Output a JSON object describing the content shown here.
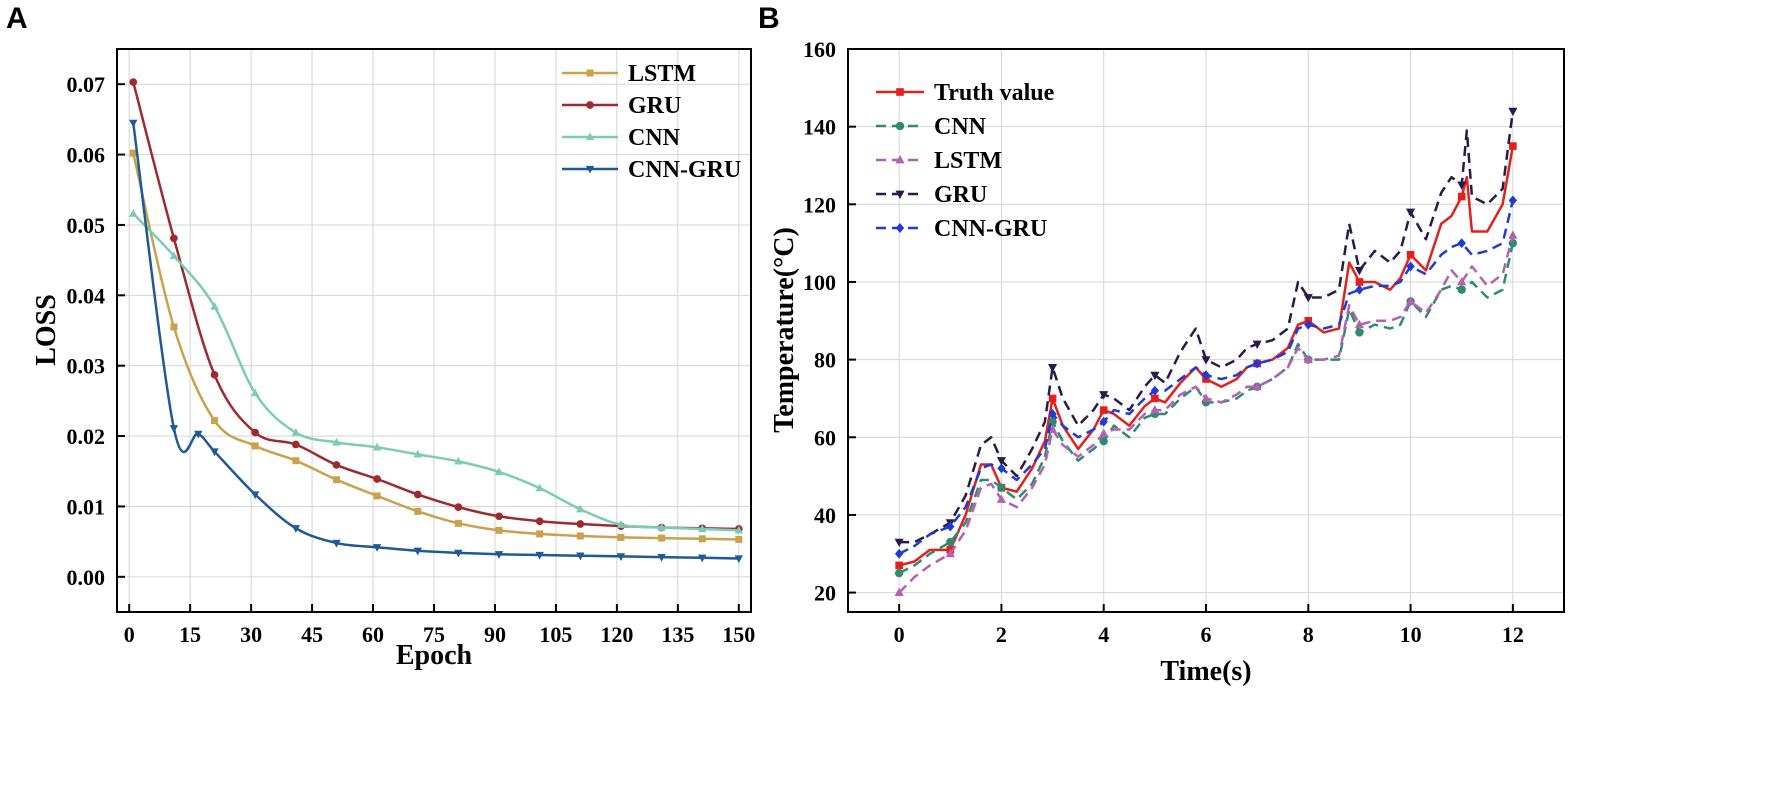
{
  "chart_data": [
    {
      "panel": "A",
      "type": "line",
      "title": "",
      "xlabel": "Epoch",
      "ylabel": "LOSS",
      "xlim": [
        -3,
        153
      ],
      "ylim": [
        -0.005,
        0.075
      ],
      "xticks": [
        0,
        15,
        30,
        45,
        60,
        75,
        90,
        105,
        120,
        135,
        150
      ],
      "yticks": [
        0.0,
        0.01,
        0.02,
        0.03,
        0.04,
        0.05,
        0.06,
        0.07
      ],
      "xtick_labels": [
        "0",
        "15",
        "30",
        "45",
        "60",
        "75",
        "90",
        "105",
        "120",
        "135",
        "150"
      ],
      "ytick_labels": [
        "0.00",
        "0.01",
        "0.02",
        "0.03",
        "0.04",
        "0.05",
        "0.06",
        "0.07"
      ],
      "grid": true,
      "legend_position": "top-right",
      "series": [
        {
          "name": "LSTM",
          "color": "#c9a24b",
          "marker": "square",
          "dash": "solid",
          "x": [
            1,
            11,
            21,
            31,
            41,
            51,
            61,
            71,
            81,
            91,
            101,
            111,
            121,
            131,
            141,
            150
          ],
          "y": [
            0.0602,
            0.0355,
            0.0222,
            0.0186,
            0.0165,
            0.0138,
            0.0115,
            0.0093,
            0.0076,
            0.0066,
            0.0061,
            0.0058,
            0.0056,
            0.0055,
            0.0054,
            0.0053
          ]
        },
        {
          "name": "GRU",
          "color": "#9e2a2f",
          "marker": "circle",
          "dash": "solid",
          "x": [
            1,
            11,
            21,
            31,
            41,
            51,
            61,
            71,
            81,
            91,
            101,
            111,
            121,
            131,
            141,
            150
          ],
          "y": [
            0.0703,
            0.0481,
            0.0287,
            0.0205,
            0.0188,
            0.0159,
            0.0139,
            0.0117,
            0.0099,
            0.0086,
            0.0079,
            0.0075,
            0.0072,
            0.007,
            0.0069,
            0.0068
          ]
        },
        {
          "name": "CNN",
          "color": "#7ccbb5",
          "marker": "triangle-up",
          "dash": "solid",
          "x": [
            1,
            11,
            21,
            31,
            41,
            51,
            61,
            71,
            81,
            91,
            101,
            111,
            121,
            131,
            141,
            150
          ],
          "y": [
            0.0516,
            0.0456,
            0.0384,
            0.0261,
            0.0205,
            0.0191,
            0.0184,
            0.0174,
            0.0164,
            0.0149,
            0.0126,
            0.0096,
            0.0074,
            0.007,
            0.0068,
            0.0066
          ]
        },
        {
          "name": "CNN-GRU",
          "color": "#1f5a96",
          "marker": "triangle-down",
          "dash": "solid",
          "x": [
            1,
            11,
            17,
            21,
            31,
            41,
            51,
            61,
            71,
            81,
            91,
            101,
            111,
            121,
            131,
            141,
            150
          ],
          "y": [
            0.0645,
            0.0211,
            0.0203,
            0.0178,
            0.0117,
            0.0069,
            0.0048,
            0.0042,
            0.0037,
            0.0034,
            0.0032,
            0.0031,
            0.003,
            0.0029,
            0.0028,
            0.0027,
            0.0026
          ]
        }
      ]
    },
    {
      "panel": "B",
      "type": "line",
      "title": "",
      "xlabel": "Time(s)",
      "ylabel": "Temperature(°C)",
      "xlim": [
        -1,
        13
      ],
      "ylim": [
        15,
        160
      ],
      "xticks": [
        0,
        2,
        4,
        6,
        8,
        10,
        12
      ],
      "yticks": [
        20,
        40,
        60,
        80,
        100,
        120,
        140,
        160
      ],
      "xtick_labels": [
        "0",
        "2",
        "4",
        "6",
        "8",
        "10",
        "12"
      ],
      "ytick_labels": [
        "20",
        "40",
        "60",
        "80",
        "100",
        "120",
        "140",
        "160"
      ],
      "grid": true,
      "legend_position": "top-left",
      "series": [
        {
          "name": "Truth value",
          "color": "#e3201c",
          "marker": "square",
          "dash": "solid",
          "x": [
            0,
            0.3,
            0.6,
            1.0,
            1.3,
            1.6,
            1.8,
            2.0,
            2.3,
            2.6,
            2.85,
            3.0,
            3.2,
            3.5,
            3.8,
            4.0,
            4.2,
            4.5,
            4.8,
            5.0,
            5.2,
            5.5,
            5.8,
            6.0,
            6.3,
            6.6,
            6.8,
            7.0,
            7.3,
            7.6,
            7.8,
            8.0,
            8.3,
            8.6,
            8.8,
            9.0,
            9.3,
            9.6,
            9.8,
            10.0,
            10.3,
            10.6,
            10.8,
            11.0,
            11.1,
            11.2,
            11.5,
            11.8,
            12.0
          ],
          "y": [
            27,
            28,
            31,
            31,
            40,
            53,
            53,
            47,
            46,
            52,
            59,
            70,
            63,
            57,
            62,
            67,
            66,
            63,
            68,
            70,
            69,
            74,
            78,
            75,
            73,
            75,
            78,
            79,
            80,
            83,
            89,
            90,
            87,
            88,
            105,
            100,
            100,
            98,
            101,
            107,
            103,
            115,
            117,
            122,
            127,
            113,
            113,
            120,
            135
          ]
        },
        {
          "name": "CNN",
          "color": "#2e8b6e",
          "marker": "circle",
          "dash": "dashed",
          "x": [
            0,
            0.3,
            0.6,
            1.0,
            1.3,
            1.6,
            1.8,
            2.0,
            2.3,
            2.6,
            2.85,
            3.0,
            3.2,
            3.5,
            3.8,
            4.0,
            4.2,
            4.5,
            4.8,
            5.0,
            5.2,
            5.5,
            5.8,
            6.0,
            6.3,
            6.6,
            6.8,
            7.0,
            7.3,
            7.6,
            7.8,
            8.0,
            8.3,
            8.6,
            8.8,
            9.0,
            9.3,
            9.6,
            9.8,
            10.0,
            10.3,
            10.6,
            10.8,
            11.0,
            11.2,
            11.5,
            11.8,
            12.0
          ],
          "y": [
            25,
            27,
            30,
            33,
            38,
            49,
            49,
            47,
            44,
            48,
            55,
            64,
            59,
            54,
            57,
            59,
            63,
            60,
            65,
            66,
            66,
            70,
            73,
            69,
            69,
            70,
            72,
            73,
            75,
            78,
            84,
            80,
            80,
            80,
            93,
            87,
            89,
            88,
            89,
            95,
            91,
            98,
            99,
            98,
            100,
            96,
            98,
            110
          ]
        },
        {
          "name": "LSTM",
          "color": "#b45fb4",
          "marker": "triangle-up",
          "dash": "dashed",
          "x": [
            0,
            0.3,
            0.6,
            1.0,
            1.3,
            1.6,
            1.8,
            2.0,
            2.3,
            2.6,
            2.85,
            3.0,
            3.2,
            3.5,
            3.8,
            4.0,
            4.2,
            4.5,
            4.8,
            5.0,
            5.2,
            5.5,
            5.8,
            6.0,
            6.3,
            6.6,
            6.8,
            7.0,
            7.3,
            7.6,
            7.8,
            8.0,
            8.3,
            8.6,
            8.8,
            9.0,
            9.3,
            9.6,
            9.8,
            10.0,
            10.3,
            10.6,
            10.8,
            11.0,
            11.2,
            11.5,
            11.8,
            12.0
          ],
          "y": [
            20,
            24,
            27,
            30,
            36,
            47,
            48,
            44,
            42,
            47,
            53,
            62,
            58,
            55,
            58,
            61,
            62,
            62,
            66,
            67,
            67,
            71,
            73,
            70,
            69,
            71,
            73,
            73,
            75,
            78,
            83,
            80,
            80,
            81,
            94,
            89,
            90,
            90,
            91,
            95,
            92,
            98,
            103,
            100,
            104,
            99,
            102,
            112
          ]
        },
        {
          "name": "GRU",
          "color": "#2a1a4a",
          "marker": "triangle-down",
          "dash": "dashed",
          "x": [
            0,
            0.3,
            0.6,
            1.0,
            1.3,
            1.6,
            1.8,
            2.0,
            2.3,
            2.6,
            2.85,
            3.0,
            3.2,
            3.5,
            3.8,
            4.0,
            4.2,
            4.5,
            4.8,
            5.0,
            5.2,
            5.5,
            5.8,
            6.0,
            6.3,
            6.6,
            6.8,
            7.0,
            7.3,
            7.6,
            7.8,
            8.0,
            8.3,
            8.6,
            8.8,
            9.0,
            9.3,
            9.6,
            9.8,
            10.0,
            10.3,
            10.6,
            10.8,
            11.0,
            11.1,
            11.2,
            11.5,
            11.8,
            12.0
          ],
          "y": [
            33,
            33,
            35,
            38,
            45,
            58,
            60,
            54,
            50,
            57,
            64,
            78,
            70,
            63,
            67,
            71,
            70,
            67,
            73,
            76,
            74,
            82,
            88,
            80,
            78,
            80,
            83,
            84,
            85,
            88,
            100,
            96,
            96,
            98,
            115,
            103,
            108,
            105,
            108,
            118,
            111,
            123,
            127,
            125,
            139,
            122,
            120,
            124,
            144
          ]
        },
        {
          "name": "CNN-GRU",
          "color": "#1f3bd6",
          "marker": "diamond",
          "dash": "dashed",
          "x": [
            0,
            0.3,
            0.6,
            1.0,
            1.3,
            1.6,
            1.8,
            2.0,
            2.3,
            2.6,
            2.85,
            3.0,
            3.2,
            3.5,
            3.8,
            4.0,
            4.2,
            4.5,
            4.8,
            5.0,
            5.2,
            5.5,
            5.8,
            6.0,
            6.3,
            6.6,
            6.8,
            7.0,
            7.3,
            7.6,
            7.8,
            8.0,
            8.3,
            8.6,
            8.8,
            9.0,
            9.3,
            9.6,
            9.8,
            10.0,
            10.3,
            10.6,
            10.8,
            11.0,
            11.2,
            11.5,
            11.8,
            12.0
          ],
          "y": [
            30,
            32,
            35,
            37,
            42,
            52,
            53,
            52,
            49,
            53,
            57,
            66,
            63,
            60,
            62,
            64,
            67,
            66,
            70,
            72,
            72,
            75,
            78,
            76,
            75,
            76,
            78,
            79,
            80,
            82,
            88,
            89,
            88,
            89,
            97,
            98,
            99,
            99,
            100,
            104,
            102,
            107,
            109,
            110,
            107,
            108,
            110,
            121
          ]
        }
      ]
    }
  ]
}
